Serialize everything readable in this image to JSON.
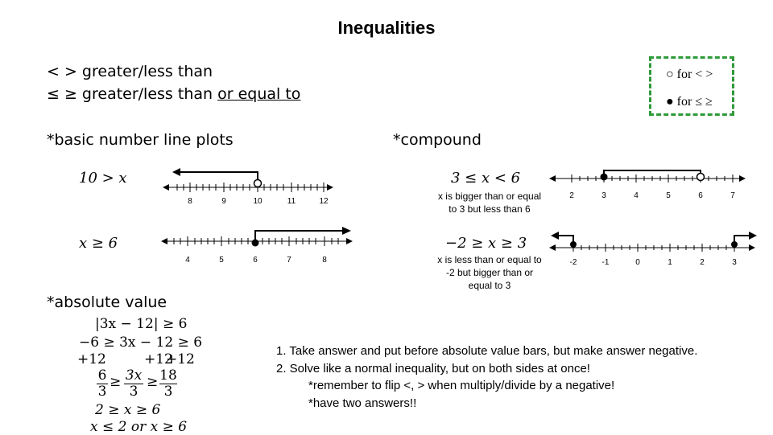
{
  "title": "Inequalities",
  "symbols": {
    "line1": "< > greater/less than",
    "line2_prefix": "≤ ≥ greater/less than ",
    "line2_underlined": "or equal to"
  },
  "legend": {
    "open_row": "○ for < >",
    "closed_row": "● for ≤ ≥",
    "border_color": "#2f9a3a"
  },
  "basic": {
    "heading": "*basic number line plots",
    "example1": {
      "expr": "10 > x",
      "ticks": [
        "8",
        "9",
        "10",
        "11",
        "12"
      ]
    },
    "example2": {
      "expr": "x ≥ 6",
      "ticks": [
        "4",
        "5",
        "6",
        "7",
        "8"
      ]
    }
  },
  "compound": {
    "heading": "*compound",
    "example1": {
      "expr": "3 ≤ x < 6",
      "note": [
        "x is bigger than or equal",
        "to 3 but less than 6"
      ],
      "ticks": [
        "2",
        "3",
        "4",
        "5",
        "6",
        "7"
      ]
    },
    "example2": {
      "expr": "−2 ≥ x ≥ 3",
      "note": [
        "x is less than or equal to",
        "-2 but bigger than or",
        "equal to 3"
      ],
      "ticks": [
        "-2",
        "-1",
        "0",
        "1",
        "2",
        "3"
      ]
    }
  },
  "absolute": {
    "heading": "*absolute value",
    "work": {
      "l1": "|3x − 12| ≥ 6",
      "l2": "−6 ≥ 3x − 12 ≥ 6",
      "l3a": "+12",
      "l3b": "+12",
      "l3c": "+12",
      "f1n": "6",
      "f1d": "3",
      "f2n": "3x",
      "f2d": "3",
      "f3n": "18",
      "f3d": "3",
      "l5": "2 ≥ x ≥ 6",
      "l6": "x ≤ 2 or x ≥ 6"
    }
  },
  "steps": {
    "s1": "1.  Take answer and put before absolute value bars, but make answer negative.",
    "s2": "2.   Solve like a normal inequality, but on both sides at once!",
    "s3": "*remember to flip <, > when multiply/divide by a negative!",
    "s4": "*have two answers!!"
  }
}
